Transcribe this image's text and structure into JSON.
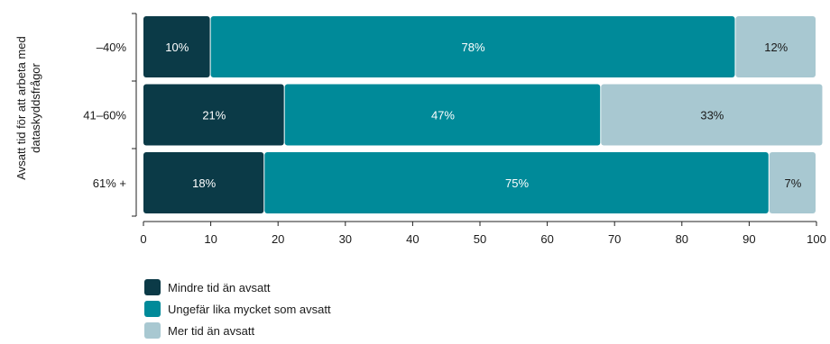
{
  "chart_data": {
    "type": "bar",
    "orientation": "horizontal",
    "stacked": true,
    "ylabel": [
      "Avsatt tid för att arbeta med",
      "dataskyddsfrågor"
    ],
    "categories": [
      "–40%",
      "41–60%",
      "61% +"
    ],
    "series": [
      {
        "name": "Mindre tid än avsatt",
        "values": [
          10,
          21,
          18
        ],
        "labels": [
          "10%",
          "21%",
          "18%"
        ],
        "color": "#0b3a47",
        "label_color": "#ffffff"
      },
      {
        "name": "Ungefär lika mycket som avsatt",
        "values": [
          78,
          47,
          75
        ],
        "labels": [
          "78%",
          "47%",
          "75%"
        ],
        "color": "#008a99",
        "label_color": "#ffffff"
      },
      {
        "name": "Mer tid än avsatt",
        "values": [
          12,
          33,
          7
        ],
        "labels": [
          "12%",
          "33%",
          "7%"
        ],
        "color": "#a8c8d1",
        "label_color": "#1a1a1a"
      }
    ],
    "xlim": [
      0,
      100
    ],
    "xticks": [
      "0",
      "10",
      "20",
      "30",
      "40",
      "50",
      "60",
      "70",
      "80",
      "90",
      "100"
    ],
    "grid": false,
    "legend_position": "bottom-left"
  }
}
